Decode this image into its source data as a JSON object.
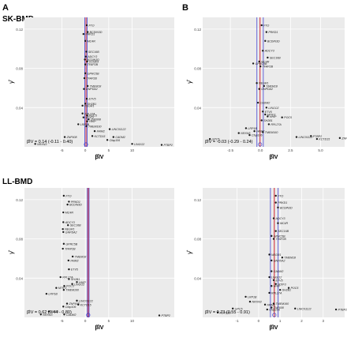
{
  "figure": {
    "panel_letters": [
      "A",
      "B"
    ],
    "row_titles": [
      "SK-BMD",
      "LL-BMD"
    ]
  },
  "chart_data": [
    {
      "type": "scatter",
      "panel": "A",
      "row": "SK-BMD",
      "xlabel": "β̂IV",
      "ylabel": "γ̂",
      "yticks": [
        "0.12",
        "0.08",
        "0.04"
      ],
      "xticks": [
        "-5",
        "0",
        "5",
        "10"
      ],
      "xlim": [
        -13,
        19
      ],
      "ylim": [
        0,
        0.132
      ],
      "estimate_text": "β̂IV = 0.14 (-0.11 - 0.40)",
      "estimate": 0.14,
      "ci": [
        -0.11,
        0.4
      ],
      "points": [
        {
          "label": "FTO",
          "x": 0.3,
          "y": 0.124
        },
        {
          "label": "BCDIN3D",
          "x": 0.5,
          "y": 0.117
        },
        {
          "label": "PRKD1",
          "x": -0.4,
          "y": 0.115
        },
        {
          "label": "MC4R",
          "x": 0.0,
          "y": 0.108
        },
        {
          "label": "SEC16B",
          "x": 0.2,
          "y": 0.097
        },
        {
          "label": "ADCY3",
          "x": 0.1,
          "y": 0.092
        },
        {
          "label": "BCDIN3D",
          "x": -0.1,
          "y": 0.089
        },
        {
          "label": "KCNK4",
          "x": 0.4,
          "y": 0.087
        },
        {
          "label": "TFAP2B",
          "x": 0.0,
          "y": 0.084
        },
        {
          "label": "GPRC5B",
          "x": 0.0,
          "y": 0.075
        },
        {
          "label": "TFAP2B",
          "x": -0.2,
          "y": 0.07
        },
        {
          "label": "TMEM18",
          "x": 0.5,
          "y": 0.062
        },
        {
          "label": "GNPDA2",
          "x": -0.3,
          "y": 0.059
        },
        {
          "label": "ETV5",
          "x": 0.3,
          "y": 0.049
        },
        {
          "label": "SH2B1",
          "x": 0.0,
          "y": 0.044
        },
        {
          "label": "NEGR1",
          "x": -0.6,
          "y": 0.042
        },
        {
          "label": "RPL27A",
          "x": -0.6,
          "y": 0.034
        },
        {
          "label": "POC5",
          "x": 0.4,
          "y": 0.032
        },
        {
          "label": "MTIF3",
          "x": -0.4,
          "y": 0.03
        },
        {
          "label": "ZNF608",
          "x": 0.7,
          "y": 0.028
        },
        {
          "label": "HHIP",
          "x": 0.4,
          "y": 0.026
        },
        {
          "label": "LRP1B",
          "x": -1.5,
          "y": 0.023
        },
        {
          "label": "TMEM160",
          "x": 0.2,
          "y": 0.021
        },
        {
          "label": "FAIM2",
          "x": 2.0,
          "y": 0.016
        },
        {
          "label": "KCTD15",
          "x": 1.5,
          "y": 0.011
        },
        {
          "label": "LINC01122",
          "x": 5.2,
          "y": 0.018
        },
        {
          "label": "CADM2",
          "x": 6.0,
          "y": 0.01
        },
        {
          "label": "Cfap106",
          "x": 4.7,
          "y": 0.007
        },
        {
          "label": "ZNF608",
          "x": -4.4,
          "y": 0.01
        },
        {
          "label": "NRXN3",
          "x": -10.7,
          "y": 0.003
        },
        {
          "label": "LINGO2",
          "x": 10.0,
          "y": 0.003
        },
        {
          "label": "PTBP2",
          "x": 16.3,
          "y": 0.002
        }
      ]
    },
    {
      "type": "scatter",
      "panel": "B",
      "row": "SK-BMD",
      "xlabel": "β̂IV",
      "ylabel": "γ̂",
      "yticks": [
        "0.12",
        "0.08",
        "0.04"
      ],
      "xticks": [
        "-2.5",
        "0.0",
        "2.5",
        "5.0"
      ],
      "xlim": [
        -4.8,
        7.0
      ],
      "ylim": [
        0,
        0.132
      ],
      "estimate_text": "β̂IV = -0.03 (-0.29 - 0.24)",
      "estimate": -0.03,
      "ci": [
        -0.29,
        0.24
      ],
      "points": [
        {
          "label": "FTO",
          "x": 0.1,
          "y": 0.124
        },
        {
          "label": "PRKD1",
          "x": 0.5,
          "y": 0.117
        },
        {
          "label": "BCDIN3D",
          "x": 0.4,
          "y": 0.108
        },
        {
          "label": "ADCY3",
          "x": 0.2,
          "y": 0.098
        },
        {
          "label": "SEC16B",
          "x": 0.6,
          "y": 0.091
        },
        {
          "label": "MC4R",
          "x": -0.1,
          "y": 0.087
        },
        {
          "label": "GPRC5B",
          "x": -0.6,
          "y": 0.085
        },
        {
          "label": "TFAP2B",
          "x": 0.0,
          "y": 0.082
        },
        {
          "label": "NEGR1",
          "x": -0.3,
          "y": 0.065
        },
        {
          "label": "TMEM18",
          "x": 0.3,
          "y": 0.062
        },
        {
          "label": "GNPDA2",
          "x": -0.1,
          "y": 0.059
        },
        {
          "label": "CADM2",
          "x": -0.2,
          "y": 0.045
        },
        {
          "label": "LINGO2",
          "x": 0.5,
          "y": 0.04
        },
        {
          "label": "ETV5",
          "x": 0.2,
          "y": 0.036
        },
        {
          "label": "MTIF3",
          "x": 0.4,
          "y": 0.033
        },
        {
          "label": "HHIP",
          "x": 0.6,
          "y": 0.031
        },
        {
          "label": "POC5",
          "x": 1.8,
          "y": 0.03
        },
        {
          "label": "SH2B1",
          "x": 0.1,
          "y": 0.027
        },
        {
          "label": "RPL27A",
          "x": 0.7,
          "y": 0.023
        },
        {
          "label": "LRP1B",
          "x": -1.2,
          "y": 0.019
        },
        {
          "label": "NRXN3",
          "x": -1.8,
          "y": 0.014
        },
        {
          "label": "Cfap106",
          "x": -0.9,
          "y": 0.012
        },
        {
          "label": "TMEM160",
          "x": 0.2,
          "y": 0.015
        },
        {
          "label": "FAIM2",
          "x": -0.5,
          "y": 0.016
        },
        {
          "label": "LINC01122",
          "x": 3.0,
          "y": 0.01
        },
        {
          "label": "PTBP2",
          "x": 4.2,
          "y": 0.011
        },
        {
          "label": "KCTD15",
          "x": 4.7,
          "y": 0.008
        },
        {
          "label": "GPC5",
          "x": -4.2,
          "y": 0.008
        },
        {
          "label": "ZNF608",
          "x": 6.6,
          "y": 0.009
        }
      ]
    },
    {
      "type": "scatter",
      "panel": "A",
      "row": "LL-BMD",
      "xlabel": "β̂IV",
      "ylabel": "γ̂",
      "yticks": [
        "0.12",
        "0.08",
        "0.04"
      ],
      "xticks": [
        "-5",
        "0",
        "5",
        "10"
      ],
      "xlim": [
        -13,
        19
      ],
      "ylim": [
        0,
        0.132
      ],
      "estimate_text": "β̂IV = 0.62 (0.44 - 0.80)",
      "estimate": 0.62,
      "ci": [
        0.44,
        0.8
      ],
      "points": [
        {
          "label": "FTO",
          "x": -4.6,
          "y": 0.124
        },
        {
          "label": "PRKD1",
          "x": -3.5,
          "y": 0.118
        },
        {
          "label": "BCDIN3D",
          "x": -3.8,
          "y": 0.115
        },
        {
          "label": "MC4R",
          "x": -4.7,
          "y": 0.107
        },
        {
          "label": "ADCY3",
          "x": -4.7,
          "y": 0.097
        },
        {
          "label": "SEC16B",
          "x": -3.7,
          "y": 0.094
        },
        {
          "label": "NEGR1",
          "x": -4.8,
          "y": 0.09
        },
        {
          "label": "GNPDA2",
          "x": -4.7,
          "y": 0.087
        },
        {
          "label": "GPRC5B",
          "x": -4.6,
          "y": 0.075
        },
        {
          "label": "TFAP2B",
          "x": -4.8,
          "y": 0.07
        },
        {
          "label": "TMEM18",
          "x": -2.7,
          "y": 0.062
        },
        {
          "label": "FAIM2",
          "x": -3.6,
          "y": 0.058
        },
        {
          "label": "ETV5",
          "x": -3.5,
          "y": 0.049
        },
        {
          "label": "RPL27A",
          "x": -5.3,
          "y": 0.041
        },
        {
          "label": "SH2B1",
          "x": -3.5,
          "y": 0.039
        },
        {
          "label": "HHIP",
          "x": -1.8,
          "y": 0.036
        },
        {
          "label": "LINGO2",
          "x": -2.8,
          "y": 0.034
        },
        {
          "label": "POC5",
          "x": -4.5,
          "y": 0.032
        },
        {
          "label": "MTIF3",
          "x": -6.2,
          "y": 0.03
        },
        {
          "label": "TMEM160",
          "x": -4.6,
          "y": 0.028
        },
        {
          "label": "LRP1B",
          "x": -8.3,
          "y": 0.024
        },
        {
          "label": "LINC01122",
          "x": -1.8,
          "y": 0.017
        },
        {
          "label": "ZNF608",
          "x": -3.9,
          "y": 0.014
        },
        {
          "label": "KCTD15",
          "x": -1.5,
          "y": 0.013
        },
        {
          "label": "Cfap106",
          "x": -4.7,
          "y": 0.011
        },
        {
          "label": "GPC5",
          "x": -7.8,
          "y": 0.006
        },
        {
          "label": "NRXN3",
          "x": -9.5,
          "y": 0.003
        },
        {
          "label": "CADM2",
          "x": -4.5,
          "y": 0.003
        },
        {
          "label": "PTBP2",
          "x": 15.8,
          "y": 0.002
        }
      ]
    },
    {
      "type": "scatter",
      "panel": "B",
      "row": "LL-BMD",
      "xlabel": "β̂IV",
      "ylabel": "γ̂",
      "yticks": [
        "0.12",
        "0.08",
        "0.04"
      ],
      "xticks": [
        "-1",
        "0",
        "1",
        "2",
        "3"
      ],
      "xlim": [
        -2.6,
        4.0
      ],
      "ylim": [
        0,
        0.132
      ],
      "estimate_text": "β̂IV = 0.73 (0.55 - 0.91)",
      "estimate": 0.73,
      "ci": [
        0.55,
        0.91
      ],
      "points": [
        {
          "label": "FTO",
          "x": 0.8,
          "y": 0.124
        },
        {
          "label": "PRKD1",
          "x": 0.8,
          "y": 0.117
        },
        {
          "label": "BCDIN3D",
          "x": 0.9,
          "y": 0.112
        },
        {
          "label": "ADCY3",
          "x": 0.7,
          "y": 0.101
        },
        {
          "label": "MC4R",
          "x": 0.9,
          "y": 0.096
        },
        {
          "label": "SEC16B",
          "x": 0.8,
          "y": 0.088
        },
        {
          "label": "GPRC5B",
          "x": 0.6,
          "y": 0.083
        },
        {
          "label": "TFAP2B",
          "x": 0.7,
          "y": 0.08
        },
        {
          "label": "NEGR1",
          "x": 0.5,
          "y": 0.064
        },
        {
          "label": "TMEM18",
          "x": 1.1,
          "y": 0.061
        },
        {
          "label": "GNPDA2",
          "x": 0.6,
          "y": 0.058
        },
        {
          "label": "CADM2",
          "x": 0.6,
          "y": 0.047
        },
        {
          "label": "LINGO2",
          "x": 0.5,
          "y": 0.041
        },
        {
          "label": "ETV5",
          "x": 0.7,
          "y": 0.038
        },
        {
          "label": "MTIF3",
          "x": 0.8,
          "y": 0.034
        },
        {
          "label": "HHIP",
          "x": 0.6,
          "y": 0.032
        },
        {
          "label": "POC5",
          "x": 1.4,
          "y": 0.03
        },
        {
          "label": "SH2B1",
          "x": 1.0,
          "y": 0.028
        },
        {
          "label": "RPL27A",
          "x": 0.5,
          "y": 0.025
        },
        {
          "label": "LRP1B",
          "x": -0.6,
          "y": 0.021
        },
        {
          "label": "NRXN3",
          "x": -0.4,
          "y": 0.016
        },
        {
          "label": "TMEM160",
          "x": 0.7,
          "y": 0.014
        },
        {
          "label": "FAIM2",
          "x": 0.3,
          "y": 0.013
        },
        {
          "label": "ZNF608",
          "x": 0.6,
          "y": 0.01
        },
        {
          "label": "Cfap106",
          "x": 0.4,
          "y": 0.008
        },
        {
          "label": "LINC01122",
          "x": 1.7,
          "y": 0.009
        },
        {
          "label": "GPC5",
          "x": -1.2,
          "y": 0.009
        },
        {
          "label": "KCTD15",
          "x": -1.9,
          "y": 0.005
        },
        {
          "label": "PTBP2",
          "x": 3.6,
          "y": 0.008
        }
      ]
    }
  ],
  "colors": {
    "panel_background": "#ebebeb",
    "grid": "#ffffff",
    "point": "#1a1a1a",
    "estimate_line": "#d0202a",
    "ci_line": "#2a2ad0"
  }
}
